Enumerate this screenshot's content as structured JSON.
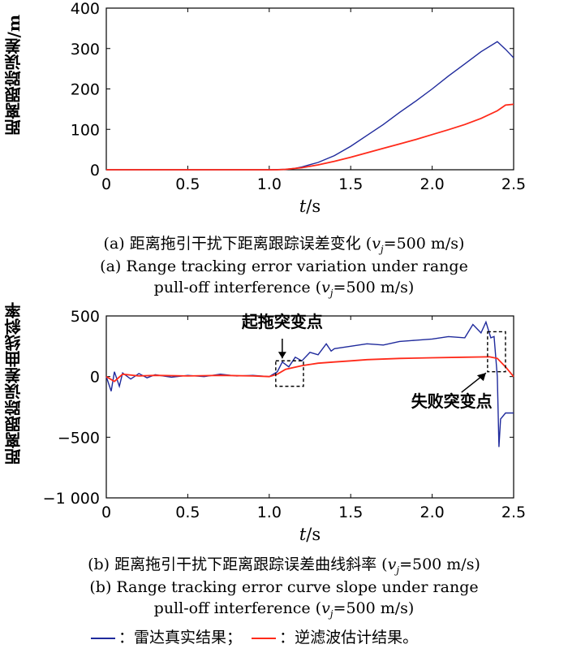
{
  "chart_data": [
    {
      "type": "line",
      "xlabel_italic": "t",
      "xlabel_unit": "/s",
      "ylabel": "距离跟踪误差/m",
      "xlim": [
        0,
        2.5
      ],
      "ylim": [
        0,
        400
      ],
      "xticks": [
        "0",
        "0.5",
        "1.0",
        "1.5",
        "2.0",
        "2.5"
      ],
      "yticks": [
        "0",
        "100",
        "200",
        "300",
        "400"
      ],
      "series": [
        {
          "color": "#1f2a9c",
          "x": [
            0,
            1.0,
            1.1,
            1.15,
            1.2,
            1.3,
            1.4,
            1.5,
            1.6,
            1.7,
            1.8,
            1.9,
            2.0,
            2.1,
            2.2,
            2.3,
            2.4,
            2.45,
            2.5
          ],
          "y": [
            0,
            0,
            1,
            3,
            7,
            18,
            35,
            58,
            85,
            112,
            142,
            170,
            200,
            232,
            262,
            292,
            317,
            298,
            277
          ]
        },
        {
          "color": "#ff2a1a",
          "x": [
            0,
            1.05,
            1.1,
            1.2,
            1.3,
            1.4,
            1.5,
            1.6,
            1.7,
            1.8,
            1.9,
            2.0,
            2.1,
            2.2,
            2.3,
            2.4,
            2.45,
            2.5
          ],
          "y": [
            0,
            0,
            1,
            5,
            12,
            21,
            31,
            42,
            53,
            64,
            75,
            87,
            99,
            112,
            127,
            146,
            160,
            162
          ]
        }
      ],
      "caption_cn_label": "(a) 距离拖引干扰下距离跟踪误差变化 (",
      "caption_cn_var": "v",
      "caption_cn_sub": "j",
      "caption_cn_tail": "=500 m/s)",
      "caption_en_line1": "(a) Range tracking error variation under range",
      "caption_en_line2": "pull-off interference (",
      "caption_en_var": "v",
      "caption_en_sub": "j",
      "caption_en_tail": "=500 m/s)"
    },
    {
      "type": "line",
      "xlabel_italic": "t",
      "xlabel_unit": "/s",
      "ylabel": "距离跟踪误差曲线斜率",
      "xlim": [
        0,
        2.5
      ],
      "ylim": [
        -1000,
        500
      ],
      "xticks": [
        "0",
        "0.5",
        "1.0",
        "1.5",
        "2.0",
        "2.5"
      ],
      "yticks": [
        "500",
        "0",
        "−500",
        "−1 000"
      ],
      "ytick_values": [
        500,
        0,
        -500,
        -1000
      ],
      "series": [
        {
          "color": "#1f2a9c",
          "x": [
            0,
            0.03,
            0.05,
            0.08,
            0.1,
            0.15,
            0.2,
            0.25,
            0.3,
            0.4,
            0.5,
            0.6,
            0.7,
            0.8,
            0.9,
            1.0,
            1.05,
            1.08,
            1.12,
            1.16,
            1.2,
            1.25,
            1.3,
            1.35,
            1.38,
            1.4,
            1.5,
            1.6,
            1.7,
            1.8,
            1.9,
            2.0,
            2.1,
            2.2,
            2.25,
            2.3,
            2.33,
            2.36,
            2.38,
            2.4,
            2.41,
            2.42,
            2.45,
            2.5
          ],
          "y": [
            0,
            -120,
            40,
            -80,
            30,
            -20,
            25,
            -10,
            15,
            -5,
            10,
            0,
            20,
            5,
            10,
            0,
            40,
            120,
            80,
            160,
            130,
            200,
            180,
            270,
            210,
            230,
            250,
            270,
            260,
            290,
            300,
            310,
            330,
            320,
            430,
            360,
            450,
            320,
            330,
            0,
            -580,
            -350,
            -300,
            -300
          ]
        },
        {
          "color": "#ff2a1a",
          "x": [
            0,
            0.05,
            0.1,
            0.2,
            0.3,
            0.5,
            0.7,
            0.9,
            1.0,
            1.05,
            1.1,
            1.2,
            1.3,
            1.4,
            1.5,
            1.6,
            1.8,
            2.0,
            2.2,
            2.3,
            2.35,
            2.4,
            2.45,
            2.5
          ],
          "y": [
            0,
            -40,
            20,
            5,
            10,
            5,
            10,
            5,
            0,
            20,
            60,
            90,
            110,
            120,
            130,
            140,
            150,
            155,
            160,
            162,
            163,
            150,
            80,
            0
          ]
        }
      ],
      "annotations": [
        "起拖突变点",
        "失败突变点"
      ],
      "caption_cn_label": "(b) 距离拖引干扰下距离跟踪误差曲线斜率 (",
      "caption_cn_var": "v",
      "caption_cn_sub": "j",
      "caption_cn_tail": "=500 m/s)",
      "caption_en_line1": "(b) Range tracking error curve slope under range",
      "caption_en_line2": "pull-off interference (",
      "caption_en_var": "v",
      "caption_en_sub": "j",
      "caption_en_tail": "=500 m/s)"
    }
  ],
  "legend": {
    "blue_label": "：雷达真实结果；",
    "red_label": "：逆滤波估计结果。",
    "blue_color": "#1f2a9c",
    "red_color": "#ff2a1a"
  }
}
